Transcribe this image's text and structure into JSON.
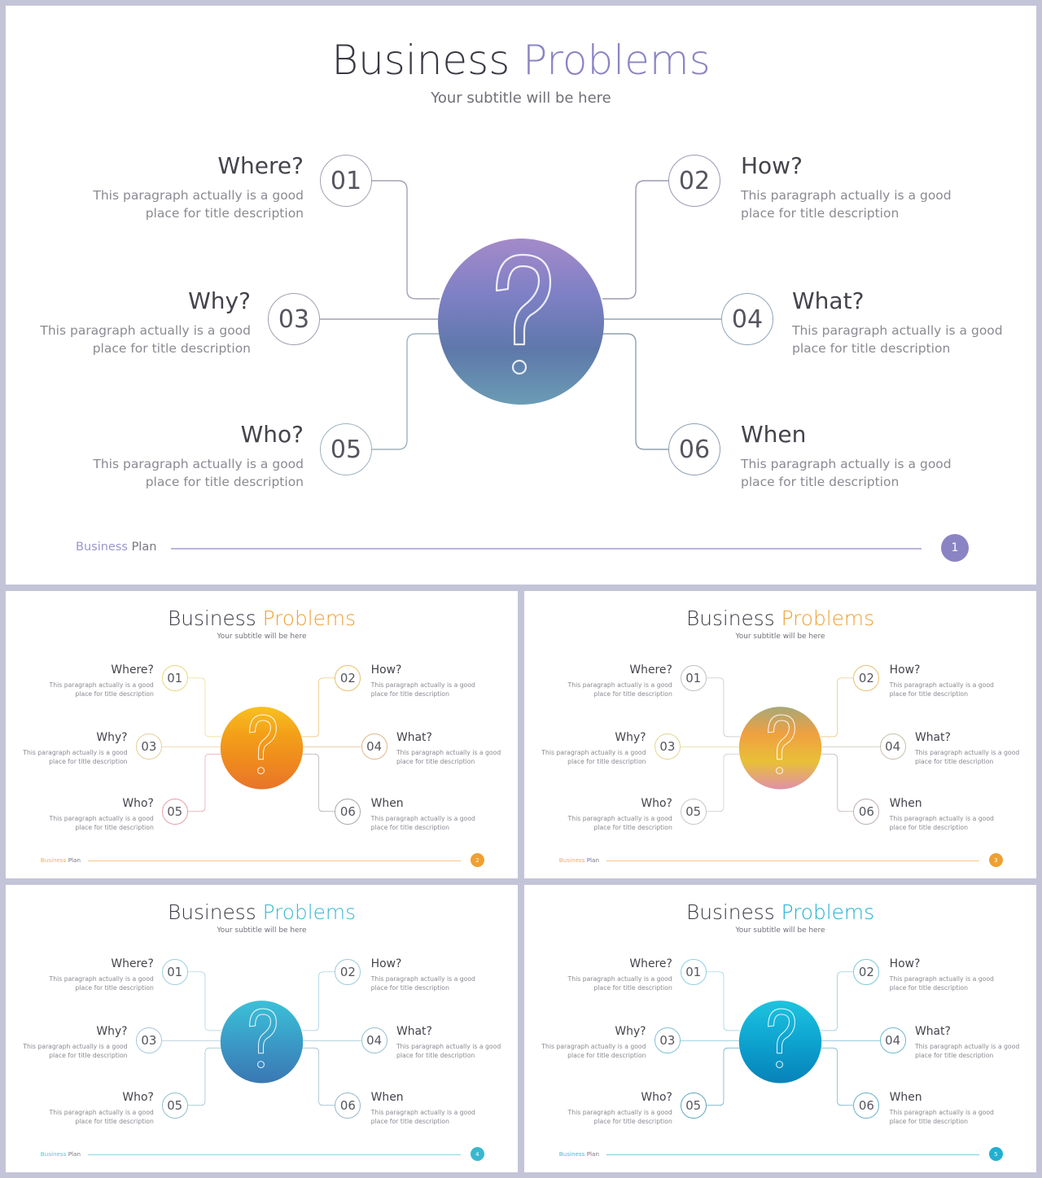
{
  "slides": [
    {
      "title_main": "Business",
      "title_accent": "Problems",
      "subtitle": "Your subtitle will be here",
      "accent": "#8a84c4",
      "gradient": [
        "#a48ac8",
        "#7f80c6",
        "#5e78aa",
        "#6b9cb4"
      ],
      "number_colors": [
        "#a3a3b3",
        "#9a9ab4",
        "#a0a0b0",
        "#8fa6b8",
        "#9fb3bc",
        "#8f9fb0"
      ],
      "footer_left": "Business",
      "footer_right": "Plan",
      "page": "1",
      "icon": "question-mark-icon",
      "items": [
        {
          "num": "01",
          "title": "Where?",
          "desc": [
            "This paragraph  actually is a good",
            "place for title description"
          ]
        },
        {
          "num": "02",
          "title": "How?",
          "desc": [
            "This paragraph  actually is a good",
            "place for title description"
          ]
        },
        {
          "num": "03",
          "title": "Why?",
          "desc": [
            "This paragraph  actually is a good",
            "place for title description"
          ]
        },
        {
          "num": "04",
          "title": "What?",
          "desc": [
            "This paragraph  actually is a good",
            "place for title description"
          ]
        },
        {
          "num": "05",
          "title": "Who?",
          "desc": [
            "This paragraph  actually is a good",
            "place for title description"
          ]
        },
        {
          "num": "06",
          "title": "When",
          "desc": [
            "This paragraph  actually is a good",
            "place for title description"
          ]
        }
      ]
    },
    {
      "title_main": "Business",
      "title_accent": "Problems",
      "subtitle": "Your subtitle will be here",
      "accent": "#f0a030",
      "gradient": [
        "#f8c020",
        "#f3a018",
        "#ef8a1e",
        "#e8742a"
      ],
      "number_colors": [
        "#e8d880",
        "#e8c06a",
        "#e8cf9a",
        "#e0b888",
        "#e4a0a8",
        "#b0a8a8"
      ],
      "footer_left": "Business",
      "footer_right": "Plan",
      "page": "2",
      "icon": "question-mark-icon",
      "items": [
        {
          "num": "01",
          "title": "Where?",
          "desc": [
            "This paragraph  actually is a good",
            "place for title description"
          ]
        },
        {
          "num": "02",
          "title": "How?",
          "desc": [
            "This paragraph  actually is a good",
            "place for title description"
          ]
        },
        {
          "num": "03",
          "title": "Why?",
          "desc": [
            "This paragraph  actually is a good",
            "place for title description"
          ]
        },
        {
          "num": "04",
          "title": "What?",
          "desc": [
            "This paragraph  actually is a good",
            "place for title description"
          ]
        },
        {
          "num": "05",
          "title": "Who?",
          "desc": [
            "This paragraph  actually is a good",
            "place for title description"
          ]
        },
        {
          "num": "06",
          "title": "When",
          "desc": [
            "This paragraph  actually is a good",
            "place for title description"
          ]
        }
      ]
    },
    {
      "title_main": "Business",
      "title_accent": "Problems",
      "subtitle": "Your subtitle will be here",
      "accent": "#f0a030",
      "gradient": [
        "#a8a878",
        "#f0a040",
        "#e8c038",
        "#e090a8"
      ],
      "number_colors": [
        "#c0c0c0",
        "#e8c070",
        "#e0d890",
        "#c8c0b0",
        "#c8c8c8",
        "#c0b0b0"
      ],
      "footer_left": "Business",
      "footer_right": "Plan",
      "page": "3",
      "icon": "question-mark-icon",
      "items": [
        {
          "num": "01",
          "title": "Where?",
          "desc": [
            "This paragraph  actually is a good",
            "place for title description"
          ]
        },
        {
          "num": "02",
          "title": "How?",
          "desc": [
            "This paragraph  actually is a good",
            "place for title description"
          ]
        },
        {
          "num": "03",
          "title": "Why?",
          "desc": [
            "This paragraph  actually is a good",
            "place for title description"
          ]
        },
        {
          "num": "04",
          "title": "What?",
          "desc": [
            "This paragraph  actually is a good",
            "place for title description"
          ]
        },
        {
          "num": "05",
          "title": "Who?",
          "desc": [
            "This paragraph  actually is a good",
            "place for title description"
          ]
        },
        {
          "num": "06",
          "title": "When",
          "desc": [
            "This paragraph  actually is a good",
            "place for title description"
          ]
        }
      ]
    },
    {
      "title_main": "Business",
      "title_accent": "Problems",
      "subtitle": "Your subtitle will be here",
      "accent": "#38b8d0",
      "gradient": [
        "#3cc0d8",
        "#3aa8cc",
        "#3a8ec0",
        "#3a78b4"
      ],
      "number_colors": [
        "#9fd0dc",
        "#9fcad8",
        "#a8c8d8",
        "#98c0d0",
        "#90c0c8",
        "#98b8c8"
      ],
      "footer_left": "Business",
      "footer_right": "Plan",
      "page": "4",
      "icon": "question-mark-icon",
      "items": [
        {
          "num": "01",
          "title": "Where?",
          "desc": [
            "This paragraph  actually is a good",
            "place for title description"
          ]
        },
        {
          "num": "02",
          "title": "How?",
          "desc": [
            "This paragraph  actually is a good",
            "place for title description"
          ]
        },
        {
          "num": "03",
          "title": "Why?",
          "desc": [
            "This paragraph  actually is a good",
            "place for title description"
          ]
        },
        {
          "num": "04",
          "title": "What?",
          "desc": [
            "This paragraph  actually is a good",
            "place for title description"
          ]
        },
        {
          "num": "05",
          "title": "Who?",
          "desc": [
            "This paragraph  actually is a good",
            "place for title description"
          ]
        },
        {
          "num": "06",
          "title": "When",
          "desc": [
            "This paragraph  actually is a good",
            "place for title description"
          ]
        }
      ]
    },
    {
      "title_main": "Business",
      "title_accent": "Problems",
      "subtitle": "Your subtitle will be here",
      "accent": "#20b0d0",
      "gradient": [
        "#1ec4de",
        "#12aed6",
        "#0a98c8",
        "#0882b8"
      ],
      "number_colors": [
        "#90d0e0",
        "#80c8dc",
        "#7cc0d8",
        "#70b8d0",
        "#60a8c0",
        "#6ab0c8"
      ],
      "footer_left": "Business",
      "footer_right": "Plan",
      "page": "5",
      "icon": "question-mark-icon",
      "items": [
        {
          "num": "01",
          "title": "Where?",
          "desc": [
            "This paragraph  actually is a good",
            "place for title description"
          ]
        },
        {
          "num": "02",
          "title": "How?",
          "desc": [
            "This paragraph  actually is a good",
            "place for title description"
          ]
        },
        {
          "num": "03",
          "title": "Why?",
          "desc": [
            "This paragraph  actually is a good",
            "place for title description"
          ]
        },
        {
          "num": "04",
          "title": "What?",
          "desc": [
            "This paragraph  actually is a good",
            "place for title description"
          ]
        },
        {
          "num": "05",
          "title": "Who?",
          "desc": [
            "This paragraph  actually is a good",
            "place for title description"
          ]
        },
        {
          "num": "06",
          "title": "When",
          "desc": [
            "This paragraph  actually is a good",
            "place for title description"
          ]
        }
      ]
    }
  ]
}
